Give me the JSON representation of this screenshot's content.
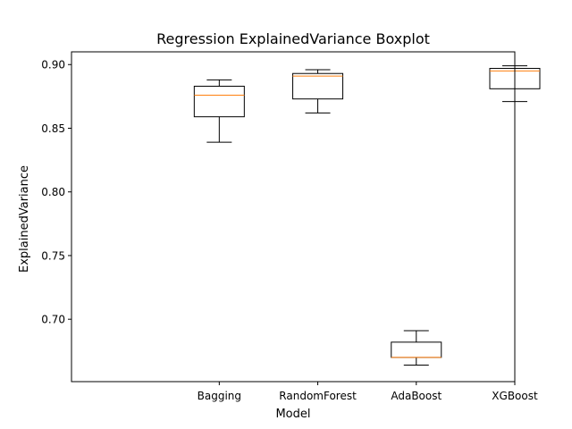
{
  "chart_data": {
    "type": "boxplot",
    "title": "Regression ExplainedVariance Boxplot",
    "xlabel": "Model",
    "ylabel": "ExplainedVariance",
    "categories": [
      "Bagging",
      "RandomForest",
      "AdaBoost",
      "XGBoost"
    ],
    "boxes": [
      {
        "name": "Bagging",
        "whisker_low": 0.839,
        "q1": 0.859,
        "median": 0.876,
        "q3": 0.883,
        "whisker_high": 0.888
      },
      {
        "name": "RandomForest",
        "whisker_low": 0.862,
        "q1": 0.873,
        "median": 0.891,
        "q3": 0.893,
        "whisker_high": 0.896
      },
      {
        "name": "AdaBoost",
        "whisker_low": 0.664,
        "q1": 0.67,
        "median": 0.67,
        "q3": 0.682,
        "whisker_high": 0.691
      },
      {
        "name": "XGBoost",
        "whisker_low": 0.871,
        "q1": 0.881,
        "median": 0.895,
        "q3": 0.897,
        "whisker_high": 0.899
      }
    ],
    "ylim": [
      0.651,
      0.91
    ],
    "yticks": [
      0.7,
      0.75,
      0.8,
      0.85,
      0.9
    ],
    "ytick_labels": [
      "0.70",
      "0.75",
      "0.80",
      "0.85",
      "0.90"
    ],
    "grid": false,
    "colors": {
      "box": "#000000",
      "median": "#ff7f0e",
      "background": "#ffffff"
    }
  }
}
